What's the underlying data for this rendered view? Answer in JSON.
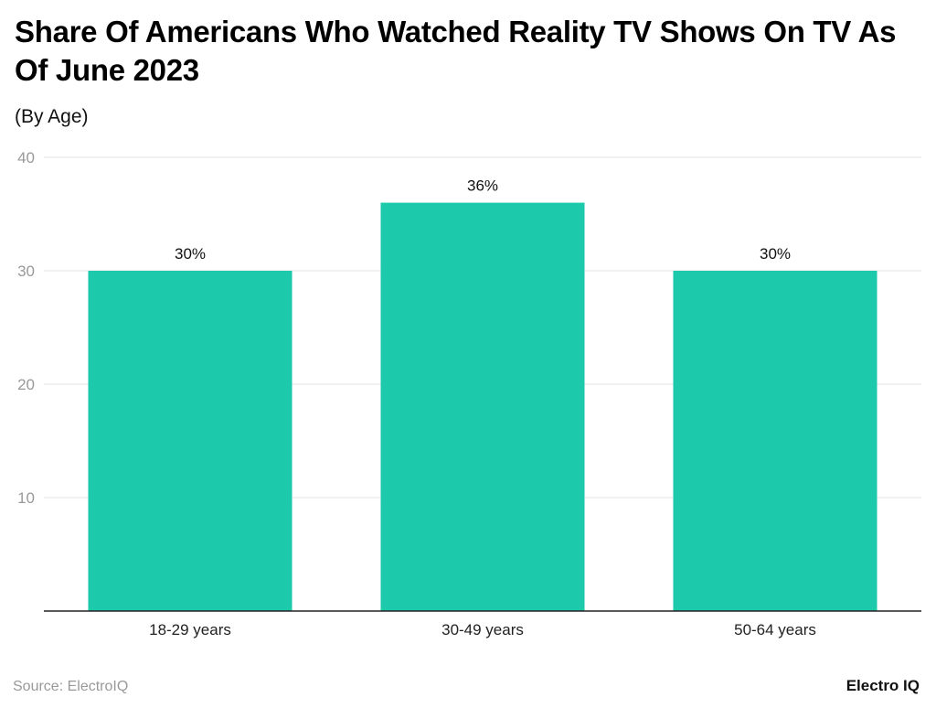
{
  "chart_data": {
    "type": "bar",
    "title": "Share Of Americans Who Watched Reality TV Shows On TV As Of June 2023",
    "subtitle": "(By Age)",
    "categories": [
      "18-29 years",
      "30-49 years",
      "50-64 years"
    ],
    "values": [
      30,
      36,
      30
    ],
    "data_labels": [
      "30%",
      "36%",
      "30%"
    ],
    "xlabel": "",
    "ylabel": "",
    "ylim": [
      0,
      40
    ],
    "yticks": [
      10,
      20,
      30,
      40
    ],
    "grid": true,
    "bar_color": "#1ccaab"
  },
  "footer": {
    "source": "Source: ElectroIQ",
    "logo": "Electro IQ"
  }
}
